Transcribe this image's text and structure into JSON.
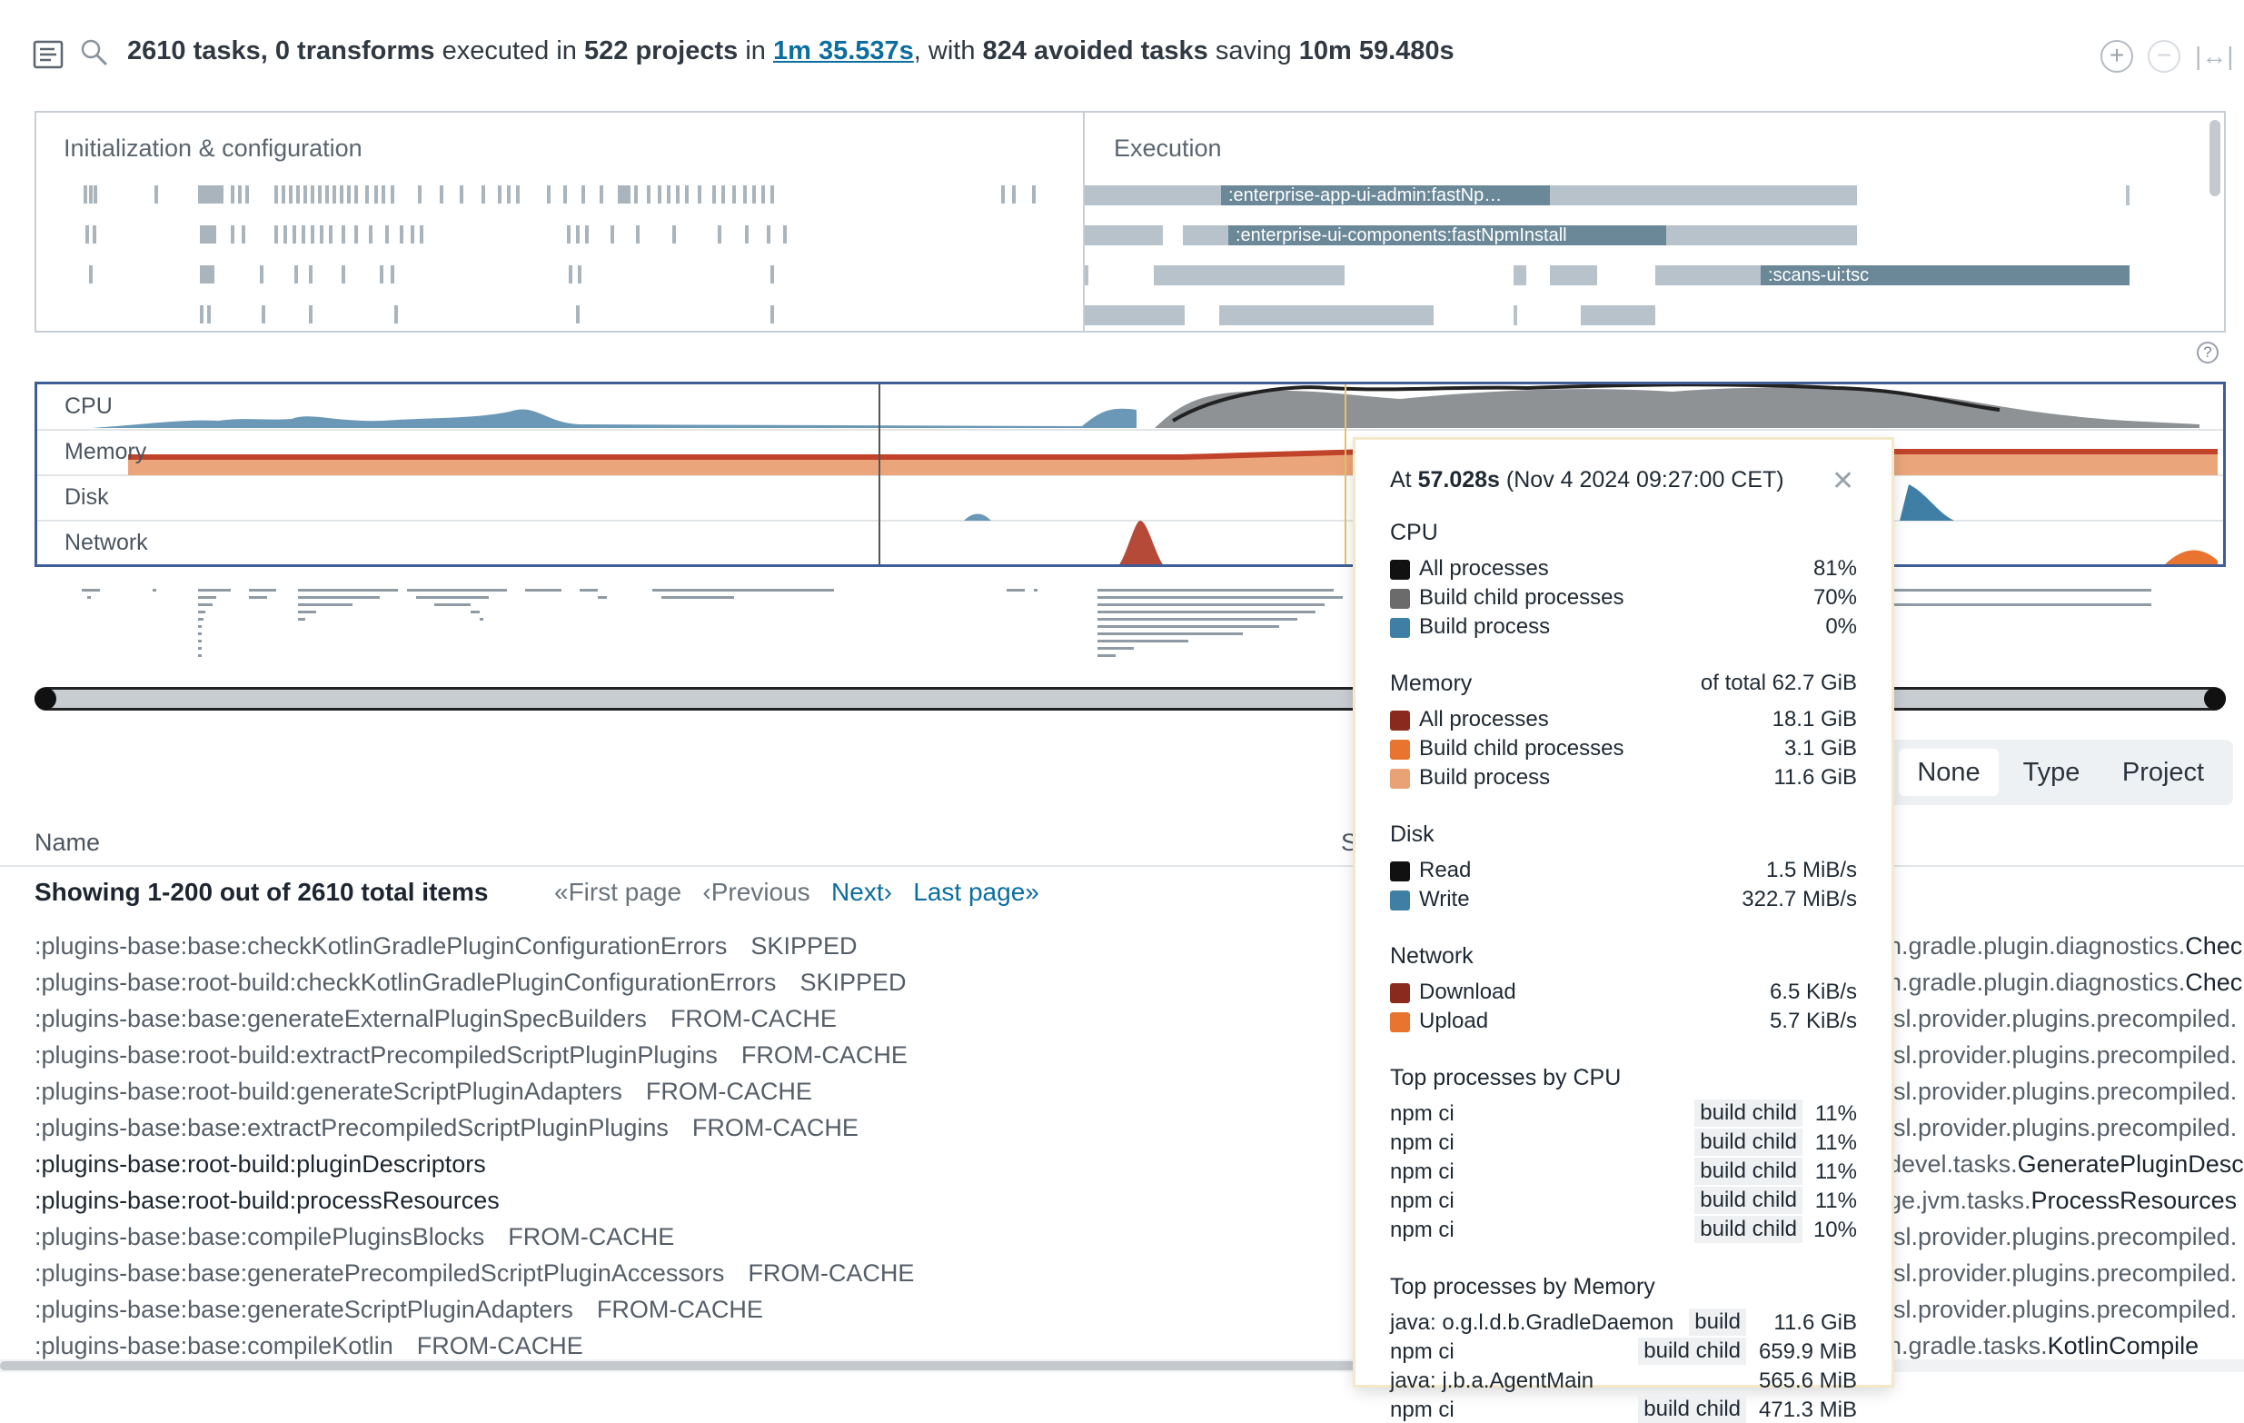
{
  "summary": {
    "tasks": "2610 tasks,",
    "transforms": "0 transforms",
    "executed_in": "executed in",
    "projects": "522 projects",
    "in_word": "in",
    "duration": "1m 35.537s",
    "with_word": ", with",
    "avoided": "824 avoided tasks",
    "saving_word": "saving",
    "saved": "10m 59.480s"
  },
  "timeline": {
    "init_title": "Initialization & configuration",
    "exec_title": "Execution",
    "exec_labels": [
      ":enterprise-app-ui-admin:fastNp…",
      ":enterprise-ui-components:fastNpmInstall",
      ":scans-ui:tsc"
    ]
  },
  "resources": {
    "labels": [
      "CPU",
      "Memory",
      "Disk",
      "Network"
    ]
  },
  "grouping": {
    "options": [
      "None",
      "Type",
      "Project"
    ],
    "selected": "None"
  },
  "table": {
    "name_header": "Name",
    "showing": "Showing 1-200 out of 2610 total items",
    "pager": {
      "first": "«First page",
      "previous": "‹Previous",
      "next": "Next›",
      "last": "Last page»"
    },
    "rows": [
      {
        "name": ":plugins-base:base:checkKotlinGradlePluginConfigurationErrors",
        "status": "SKIPPED",
        "dark": false,
        "cls_pre": "n.gradle.plugin.diagnostics.",
        "cls": "Chec"
      },
      {
        "name": ":plugins-base:root-build:checkKotlinGradlePluginConfigurationErrors",
        "status": "SKIPPED",
        "dark": false,
        "cls_pre": "n.gradle.plugin.diagnostics.",
        "cls": "Chec"
      },
      {
        "name": ":plugins-base:base:generateExternalPluginSpecBuilders",
        "status": "FROM-CACHE",
        "dark": false,
        "cls_pre": "lsl.provider.plugins.precompiled.",
        "cls": ""
      },
      {
        "name": ":plugins-base:root-build:extractPrecompiledScriptPluginPlugins",
        "status": "FROM-CACHE",
        "dark": false,
        "cls_pre": "lsl.provider.plugins.precompiled.",
        "cls": ""
      },
      {
        "name": ":plugins-base:root-build:generateScriptPluginAdapters",
        "status": "FROM-CACHE",
        "dark": false,
        "cls_pre": "lsl.provider.plugins.precompiled.",
        "cls": ""
      },
      {
        "name": ":plugins-base:base:extractPrecompiledScriptPluginPlugins",
        "status": "FROM-CACHE",
        "dark": false,
        "cls_pre": "lsl.provider.plugins.precompiled.",
        "cls": ""
      },
      {
        "name": ":plugins-base:root-build:pluginDescriptors",
        "status": "",
        "dark": true,
        "cls_pre": "devel.tasks.",
        "cls": "GeneratePluginDesc"
      },
      {
        "name": ":plugins-base:root-build:processResources",
        "status": "",
        "dark": true,
        "cls_pre": "ge.jvm.tasks.",
        "cls": "ProcessResources"
      },
      {
        "name": ":plugins-base:base:compilePluginsBlocks",
        "status": "FROM-CACHE",
        "dark": false,
        "cls_pre": "lsl.provider.plugins.precompiled.",
        "cls": ""
      },
      {
        "name": ":plugins-base:base:generatePrecompiledScriptPluginAccessors",
        "status": "FROM-CACHE",
        "dark": false,
        "cls_pre": "lsl.provider.plugins.precompiled.",
        "cls": ""
      },
      {
        "name": ":plugins-base:base:generateScriptPluginAdapters",
        "status": "FROM-CACHE",
        "dark": false,
        "cls_pre": "lsl.provider.plugins.precompiled.",
        "cls": ""
      },
      {
        "name": ":plugins-base:base:compileKotlin",
        "status": "FROM-CACHE",
        "dark": false,
        "cls_pre": "n.gradle.tasks.",
        "cls": "KotlinCompile"
      }
    ]
  },
  "popup": {
    "at_prefix": "At",
    "time": "57.028s",
    "date": "(Nov 4 2024 09:27:00 CET)",
    "cpu": {
      "title": "CPU",
      "items": [
        {
          "label": "All processes",
          "value": "81%",
          "color": "#111111"
        },
        {
          "label": "Build child processes",
          "value": "70%",
          "color": "#6b6b6b"
        },
        {
          "label": "Build process",
          "value": "0%",
          "color": "#3f7fa6"
        }
      ]
    },
    "memory": {
      "title": "Memory",
      "total": "of total 62.7 GiB",
      "items": [
        {
          "label": "All processes",
          "value": "18.1 GiB",
          "color": "#8a2a1c"
        },
        {
          "label": "Build child processes",
          "value": "3.1 GiB",
          "color": "#e8742f"
        },
        {
          "label": "Build process",
          "value": "11.6 GiB",
          "color": "#e9a276"
        }
      ]
    },
    "disk": {
      "title": "Disk",
      "items": [
        {
          "label": "Read",
          "value": "1.5 MiB/s",
          "color": "#111111"
        },
        {
          "label": "Write",
          "value": "322.7 MiB/s",
          "color": "#3f7fa6"
        }
      ]
    },
    "network": {
      "title": "Network",
      "items": [
        {
          "label": "Download",
          "value": "6.5 KiB/s",
          "color": "#8a2a1c"
        },
        {
          "label": "Upload",
          "value": "5.7 KiB/s",
          "color": "#e8742f"
        }
      ]
    },
    "top_cpu": {
      "title": "Top processes by CPU",
      "items": [
        {
          "name": "npm ci",
          "tag": "build child",
          "value": "11%"
        },
        {
          "name": "npm ci",
          "tag": "build child",
          "value": "11%"
        },
        {
          "name": "npm ci",
          "tag": "build child",
          "value": "11%"
        },
        {
          "name": "npm ci",
          "tag": "build child",
          "value": "11%"
        },
        {
          "name": "npm ci",
          "tag": "build child",
          "value": "10%"
        }
      ]
    },
    "top_mem": {
      "title": "Top processes by Memory",
      "items": [
        {
          "name": "java: o.g.l.d.b.GradleDaemon",
          "tag": "build",
          "value": "11.6 GiB"
        },
        {
          "name": "npm ci",
          "tag": "build child",
          "value": "659.9 MiB"
        },
        {
          "name": "java: j.b.a.AgentMain",
          "tag": "",
          "value": "565.6 MiB"
        },
        {
          "name": "npm ci",
          "tag": "build child",
          "value": "471.3 MiB"
        }
      ]
    }
  }
}
